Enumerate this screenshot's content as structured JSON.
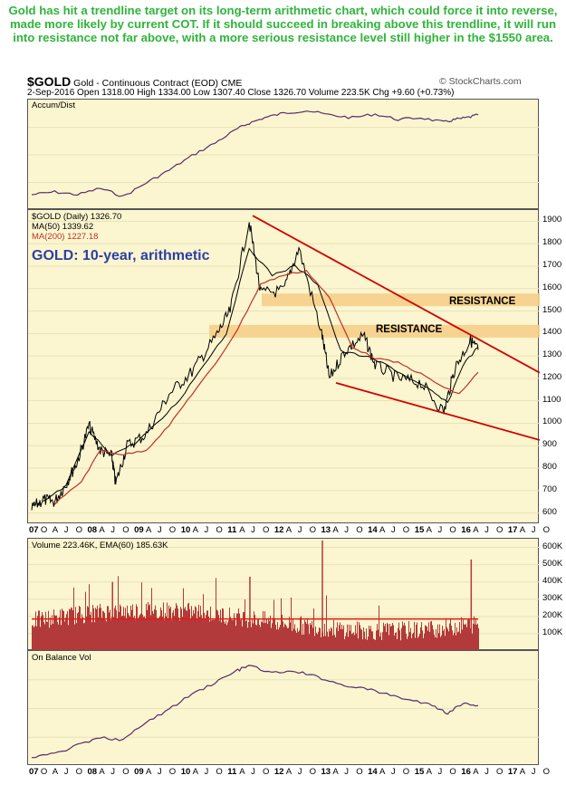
{
  "caption": "Gold has hit a trendline target on its long-term arithmetic chart, which could force it into reverse, made more likely by current COT. If it should succeed in breaking above this trendline, it will run into resistance not far above, with a more serious resistance level still higher in the $1550 area.",
  "header": {
    "symbol": "$GOLD",
    "name": "Gold - Continuous Contract (EOD)",
    "exchange": "CME",
    "source": "© StockCharts.com",
    "quote": "2-Sep-2016   Open 1318.00  High 1334.00  Low 1307.40  Close 1326.70  Volume 223.5K  Chg +9.60 (+0.73%)"
  },
  "panels": {
    "accum": {
      "label": "Accum/Dist"
    },
    "price": {
      "label1": "$GOLD (Daily) 1326.70",
      "label2": "MA(50) 1339.62",
      "label3": "MA(200) 1227.18",
      "annotation": "GOLD: 10-year, arithmetic",
      "resistance1": "RESISTANCE",
      "resistance2": "RESISTANCE"
    },
    "volume": {
      "label": "Volume 223.46K, EMA(60) 185.63K"
    },
    "obv": {
      "label": "On Balance Vol"
    }
  },
  "xaxis_labels": [
    "07",
    "O",
    "A",
    "J",
    "O",
    "08",
    "A",
    "J",
    "O",
    "09",
    "A",
    "J",
    "O",
    "10",
    "A",
    "J",
    "O",
    "11",
    "A",
    "J",
    "O",
    "12",
    "A",
    "J",
    "O",
    "13",
    "A",
    "J",
    "O",
    "14",
    "A",
    "J",
    "O",
    "15",
    "A",
    "J",
    "O",
    "16",
    "A",
    "J",
    "O",
    "17",
    "A",
    "J",
    "O"
  ],
  "colors": {
    "caption": "#2fb53a",
    "panel_bg": "#fbf6cf",
    "trendline": "#d40000",
    "price": "#000000",
    "ma200": "#c0302a",
    "volume": "#b23a3a",
    "resistance_band": "#f6cf8a",
    "label_blue": "#2c3fa8"
  },
  "chart_data": [
    {
      "type": "line",
      "title": "Accum/Dist",
      "x": [
        "2006-12",
        "2007-06",
        "2007-12",
        "2008-06",
        "2008-12",
        "2009-06",
        "2009-12",
        "2010-06",
        "2010-12",
        "2011-06",
        "2011-09",
        "2012-01",
        "2012-06",
        "2012-12",
        "2013-06",
        "2013-12",
        "2014-06",
        "2014-12",
        "2015-06",
        "2015-12",
        "2016-03",
        "2016-06",
        "2016-09"
      ],
      "values": [
        0.05,
        0.08,
        0.05,
        0.12,
        0.03,
        0.18,
        0.32,
        0.48,
        0.62,
        0.78,
        0.84,
        0.9,
        0.95,
        0.98,
        0.93,
        0.9,
        0.94,
        0.88,
        0.9,
        0.85,
        0.88,
        0.9,
        0.93
      ]
    },
    {
      "type": "line",
      "title": "$GOLD (Daily) 1326.70",
      "ylim": [
        550,
        1950
      ],
      "yticks": [
        600,
        700,
        800,
        900,
        1000,
        1100,
        1200,
        1300,
        1400,
        1500,
        1600,
        1700,
        1800,
        1900
      ],
      "series": [
        {
          "name": "$GOLD (Daily) 1326.70",
          "x": [
            "2006-12",
            "2007-03",
            "2007-06",
            "2007-09",
            "2007-12",
            "2008-03",
            "2008-06",
            "2008-09",
            "2008-10",
            "2009-01",
            "2009-06",
            "2009-12",
            "2010-06",
            "2010-12",
            "2011-04",
            "2011-09",
            "2011-12",
            "2012-06",
            "2012-10",
            "2013-04",
            "2013-06",
            "2013-10",
            "2014-03",
            "2014-06",
            "2014-12",
            "2015-06",
            "2015-12",
            "2016-03",
            "2016-07",
            "2016-09"
          ],
          "values": [
            620,
            660,
            650,
            730,
            830,
            990,
            880,
            850,
            730,
            900,
            950,
            1130,
            1230,
            1380,
            1500,
            1900,
            1580,
            1590,
            1780,
            1400,
            1200,
            1320,
            1390,
            1260,
            1200,
            1180,
            1050,
            1250,
            1370,
            1326.7
          ]
        },
        {
          "name": "MA(50) 1339.62",
          "x": [
            "2007-03",
            "2007-09",
            "2008-03",
            "2008-09",
            "2009-03",
            "2009-09",
            "2010-03",
            "2010-09",
            "2011-03",
            "2011-09",
            "2012-03",
            "2012-09",
            "2013-03",
            "2013-09",
            "2014-03",
            "2014-09",
            "2015-03",
            "2015-09",
            "2016-01",
            "2016-05",
            "2016-09"
          ],
          "values": [
            650,
            720,
            960,
            860,
            910,
            1000,
            1110,
            1260,
            1400,
            1780,
            1660,
            1700,
            1620,
            1320,
            1300,
            1260,
            1200,
            1140,
            1090,
            1260,
            1339.62
          ]
        },
        {
          "name": "MA(200) 1227.18",
          "x": [
            "2007-06",
            "2008-01",
            "2008-06",
            "2008-12",
            "2009-06",
            "2009-12",
            "2010-06",
            "2010-12",
            "2011-06",
            "2011-12",
            "2012-06",
            "2012-12",
            "2013-06",
            "2013-12",
            "2014-06",
            "2014-12",
            "2015-06",
            "2015-12",
            "2016-04",
            "2016-09"
          ],
          "values": [
            640,
            740,
            880,
            860,
            880,
            990,
            1130,
            1260,
            1420,
            1620,
            1660,
            1680,
            1560,
            1340,
            1290,
            1270,
            1220,
            1160,
            1130,
            1227.18
          ]
        }
      ],
      "annotations": [
        "GOLD: 10-year, arithmetic",
        "RESISTANCE",
        "RESISTANCE"
      ],
      "resistance_levels": [
        1550,
        1410
      ]
    },
    {
      "type": "bar",
      "title": "Volume 223.46K, EMA(60) 185.63K",
      "ylim": [
        0,
        650000
      ],
      "yticks": [
        "100K",
        "200K",
        "300K",
        "400K",
        "500K",
        "600K"
      ],
      "ema_60": 185630
    },
    {
      "type": "line",
      "title": "On Balance Vol",
      "x": [
        "2006-12",
        "2007-06",
        "2007-12",
        "2008-06",
        "2008-12",
        "2009-06",
        "2009-12",
        "2010-06",
        "2010-12",
        "2011-06",
        "2011-09",
        "2012-03",
        "2012-09",
        "2013-03",
        "2013-09",
        "2014-03",
        "2014-09",
        "2015-03",
        "2015-09",
        "2016-01",
        "2016-05",
        "2016-09"
      ],
      "values": [
        0.02,
        0.05,
        0.14,
        0.22,
        0.2,
        0.38,
        0.52,
        0.68,
        0.8,
        0.93,
        0.98,
        0.9,
        0.92,
        0.86,
        0.78,
        0.74,
        0.68,
        0.62,
        0.56,
        0.48,
        0.58,
        0.56
      ]
    }
  ]
}
